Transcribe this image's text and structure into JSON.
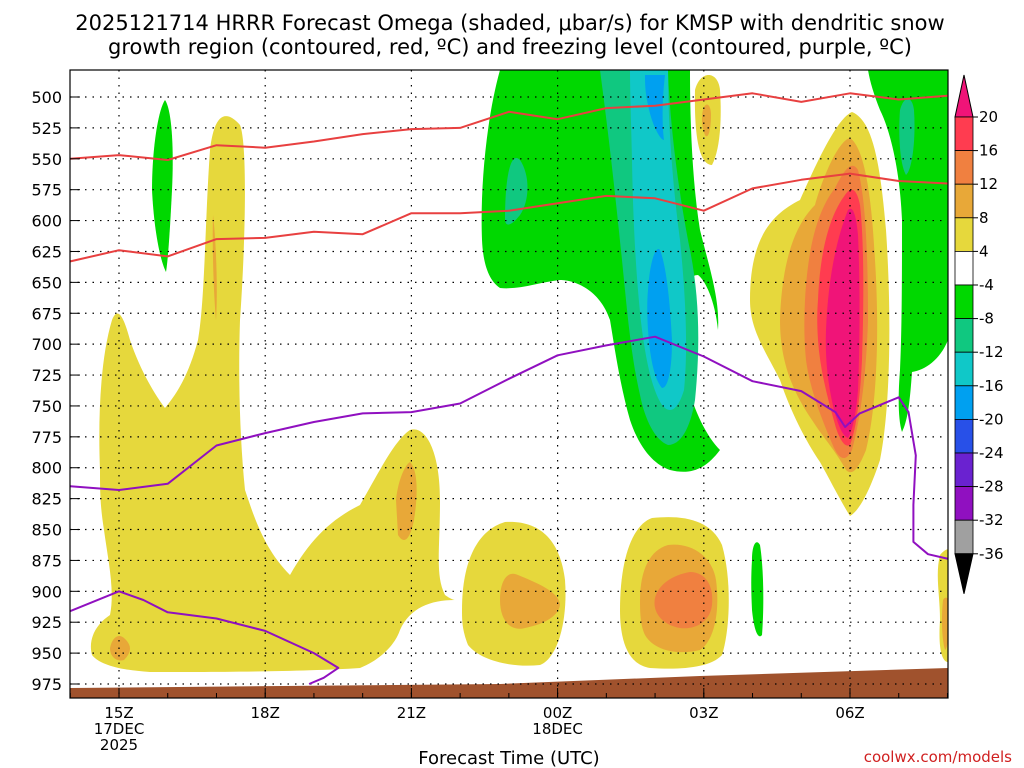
{
  "chart_data": {
    "type": "heatmap",
    "title_line1": "2025121714 HRRR Forecast Omega (shaded, μbar/s) for KMSP with dendritic snow",
    "title_line2": "growth region (contoured, red, ºC) and freezing level (contoured, purple, ºC)",
    "xlabel": "Forecast Time (UTC)",
    "credit": "coolwx.com/models",
    "y_axis": {
      "unit": "hPa",
      "ticks": [
        500,
        525,
        550,
        575,
        600,
        625,
        650,
        675,
        700,
        725,
        750,
        775,
        800,
        825,
        850,
        875,
        900,
        925,
        950,
        975
      ],
      "range": [
        480,
        1000
      ]
    },
    "x_axis": {
      "unit": "forecast hour from 14Z 17DEC2025",
      "range": [
        0,
        18.7
      ],
      "ticks": [
        {
          "hour": 1,
          "label": "15Z",
          "sub1": "17DEC",
          "sub2": "2025"
        },
        {
          "hour": 4,
          "label": "18Z",
          "sub1": "",
          "sub2": ""
        },
        {
          "hour": 7,
          "label": "21Z",
          "sub1": "",
          "sub2": ""
        },
        {
          "hour": 10,
          "label": "00Z",
          "sub1": "18DEC",
          "sub2": ""
        },
        {
          "hour": 13,
          "label": "03Z",
          "sub1": "",
          "sub2": ""
        },
        {
          "hour": 16,
          "label": "06Z",
          "sub1": "",
          "sub2": ""
        }
      ]
    },
    "colorbar": {
      "levels": [
        20,
        16,
        12,
        8,
        4,
        -4,
        -8,
        -12,
        -16,
        -20,
        -24,
        -28,
        -32,
        -36
      ],
      "colors": [
        "#ff3c50",
        "#f08040",
        "#e8a838",
        "#e6d83c",
        "#ffffff",
        "#00d800",
        "#10c880",
        "#10c8c8",
        "#00a0f0",
        "#2850e8",
        "#6a22d0",
        "#9010c0",
        "#a0a0a0"
      ],
      "top_color": "#f01478",
      "bottom_color": "#000000"
    },
    "dgz_top_line": {
      "color": "#e84040",
      "hours": [
        0,
        1,
        2,
        3,
        4,
        5,
        6,
        7,
        8,
        9,
        10,
        11,
        12,
        13,
        14,
        15,
        16,
        17,
        18,
        18.7
      ],
      "pressure": [
        550,
        547,
        551,
        539,
        541,
        536,
        530,
        526,
        525,
        512,
        518,
        509,
        507,
        502,
        497,
        504,
        497,
        502,
        499,
        500
      ]
    },
    "dgz_bottom_line": {
      "color": "#e84040",
      "hours": [
        0,
        1,
        2,
        3,
        4,
        5,
        6,
        7,
        8,
        9,
        10,
        11,
        12,
        13,
        14,
        15,
        16,
        17,
        18,
        18.7
      ],
      "pressure": [
        633,
        624,
        629,
        615,
        614,
        609,
        611,
        594,
        594,
        592,
        586,
        580,
        582,
        592,
        574,
        567,
        562,
        568,
        570,
        572
      ]
    },
    "freezing_level_upper": {
      "color": "#9010c0",
      "hours": [
        0,
        1,
        2,
        3,
        4,
        5,
        6,
        7,
        8,
        9,
        10,
        11,
        12,
        13,
        14,
        15,
        15.7,
        15.9,
        16.2,
        17,
        17.2,
        17.35,
        17.3,
        17.3,
        17.6,
        18.7
      ],
      "pressure": [
        815,
        818,
        813,
        782,
        772,
        763,
        756,
        755,
        748,
        728,
        709,
        701,
        694,
        710,
        730,
        738,
        755,
        767,
        756,
        743,
        755,
        790,
        830,
        860,
        870,
        880
      ]
    },
    "freezing_level_lower": {
      "color": "#9010c0",
      "hours": [
        0,
        1,
        1.5,
        2,
        3,
        4,
        5,
        5.5,
        5.2,
        4.9
      ],
      "pressure": [
        916,
        900,
        907,
        917,
        922,
        932,
        950,
        962,
        970,
        975
      ]
    },
    "terrain_color": "#a0522d",
    "omega_regions": [
      {
        "name": "lift-low-left",
        "value": 4
      },
      {
        "name": "lift-column-17z",
        "value": 4
      },
      {
        "name": "lift-23z-low",
        "value": 8
      },
      {
        "name": "lift-02z-low",
        "value": 12
      },
      {
        "name": "lift-06z-column",
        "value": 20
      },
      {
        "name": "sink-00z-03z",
        "value": -16
      },
      {
        "name": "sink-16z",
        "value": -8
      },
      {
        "name": "sink-07z",
        "value": -8
      }
    ]
  }
}
